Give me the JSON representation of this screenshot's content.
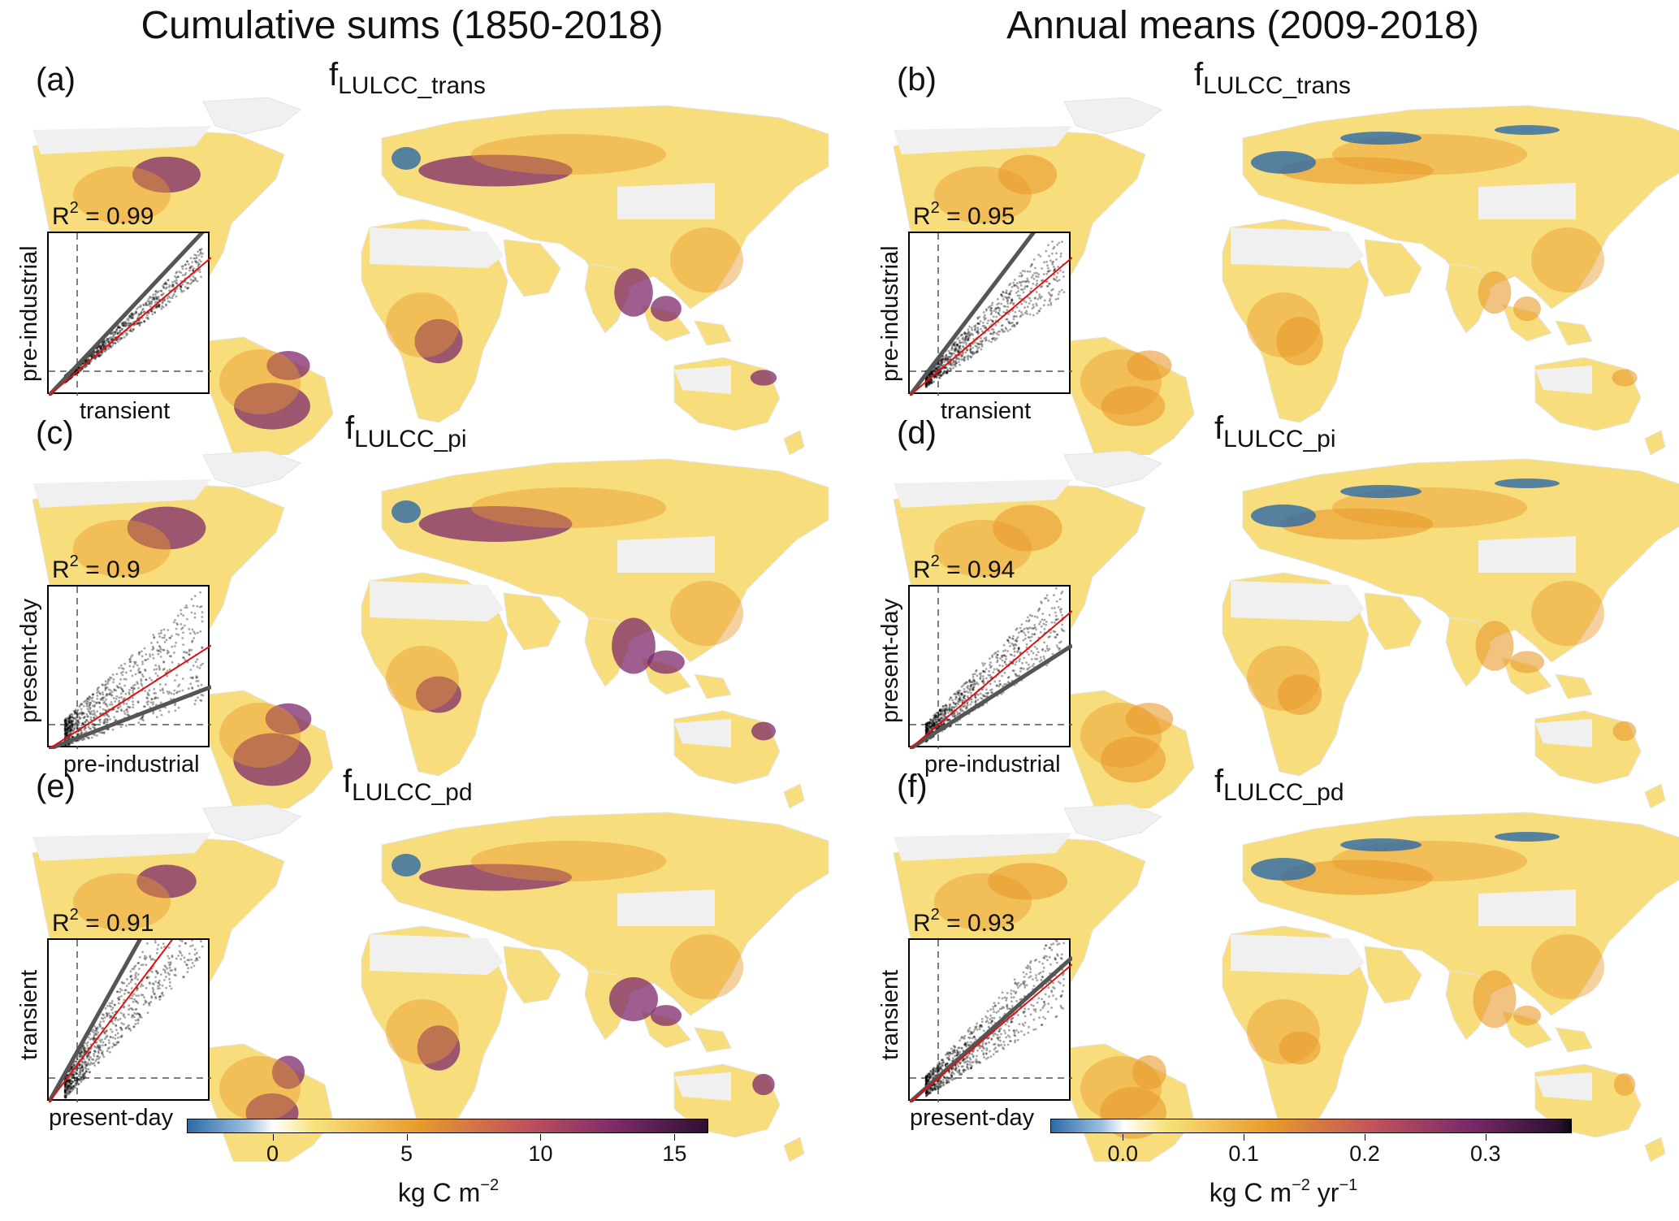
{
  "figure": {
    "left_title": "Cumulative sums (1850-2018)",
    "right_title": "Annual means (2009-2018)"
  },
  "panels": [
    {
      "label": "(a)",
      "var_main": "f",
      "var_sub": "LULCC_trans",
      "r2_prefix": "R",
      "r2_sup": "2",
      "r2_value": "= 0.99",
      "xlabel": "transient",
      "ylabel": "pre-industrial"
    },
    {
      "label": "(b)",
      "var_main": "f",
      "var_sub": "LULCC_trans",
      "r2_prefix": "R",
      "r2_sup": "2",
      "r2_value": "= 0.95",
      "xlabel": "transient",
      "ylabel": "pre-industrial"
    },
    {
      "label": "(c)",
      "var_main": "f",
      "var_sub": "LULCC_pi",
      "r2_prefix": "R",
      "r2_sup": "2",
      "r2_value": "=  0.9",
      "xlabel": "pre-industrial",
      "ylabel": "present-day"
    },
    {
      "label": "(d)",
      "var_main": "f",
      "var_sub": "LULCC_pi",
      "r2_prefix": "R",
      "r2_sup": "2",
      "r2_value": "= 0.94",
      "xlabel": "pre-industrial",
      "ylabel": "present-day"
    },
    {
      "label": "(e)",
      "var_main": "f",
      "var_sub": "LULCC_pd",
      "r2_prefix": "R",
      "r2_sup": "2",
      "r2_value": "= 0.91",
      "xlabel": "present-day",
      "ylabel": "transient"
    },
    {
      "label": "(f)",
      "var_main": "f",
      "var_sub": "LULCC_pd",
      "r2_prefix": "R",
      "r2_sup": "2",
      "r2_value": "= 0.93",
      "xlabel": "present-day",
      "ylabel": "transient"
    }
  ],
  "colorbars": {
    "left": {
      "ticks": [
        "0",
        "5",
        "10",
        "15"
      ],
      "tick_values": [
        0,
        5,
        10,
        15
      ],
      "range": [
        -3.2,
        16.2
      ],
      "unit_main": "kg C m",
      "unit_sup": "−2",
      "unit_tail": ""
    },
    "right": {
      "ticks": [
        "0.0",
        "0.1",
        "0.2",
        "0.3"
      ],
      "tick_values": [
        0.0,
        0.1,
        0.2,
        0.3
      ],
      "range": [
        -0.06,
        0.37
      ],
      "unit_main": "kg C m",
      "unit_sup": "−2",
      "unit_tail": " yr",
      "unit_sup2": "−1"
    }
  },
  "colors": {
    "negative": "#2c6aa8",
    "zero": "#ffffff",
    "low": "#f7e27a",
    "mid": "#e99a2c",
    "high": "#7d2a6b",
    "max": "#0a0a0a",
    "land_nodata": "#f0f0f0"
  },
  "chart_data": [
    {
      "type": "scatter",
      "panel": "(a)",
      "title": "fLULCC_trans",
      "xlabel": "transient",
      "ylabel": "pre-industrial",
      "r_squared": 0.99,
      "fit_slope_gray": 1.25,
      "fit_slope_red": 1.0
    },
    {
      "type": "scatter",
      "panel": "(b)",
      "title": "fLULCC_trans",
      "xlabel": "transient",
      "ylabel": "pre-industrial",
      "r_squared": 0.95,
      "fit_slope_gray": 1.55,
      "fit_slope_red": 1.0
    },
    {
      "type": "scatter",
      "panel": "(c)",
      "title": "fLULCC_pi",
      "xlabel": "pre-industrial",
      "ylabel": "present-day",
      "r_squared": 0.9,
      "fit_slope_gray": 0.45,
      "fit_slope_red": 0.75
    },
    {
      "type": "scatter",
      "panel": "(d)",
      "title": "fLULCC_pi",
      "xlabel": "pre-industrial",
      "ylabel": "present-day",
      "r_squared": 0.94,
      "fit_slope_gray": 0.75,
      "fit_slope_red": 1.0
    },
    {
      "type": "scatter",
      "panel": "(e)",
      "title": "fLULCC_pd",
      "xlabel": "present-day",
      "ylabel": "transient",
      "r_squared": 0.91,
      "fit_slope_gray": 2.1,
      "fit_slope_red": 1.55
    },
    {
      "type": "scatter",
      "panel": "(f)",
      "title": "fLULCC_pd",
      "xlabel": "present-day",
      "ylabel": "transient",
      "r_squared": 0.93,
      "fit_slope_gray": 1.05,
      "fit_slope_red": 1.0
    }
  ]
}
